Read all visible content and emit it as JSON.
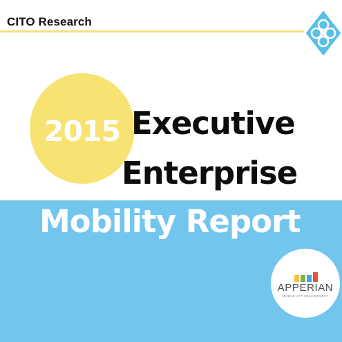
{
  "header": {
    "brand": "CITO Research",
    "logo_icon": "knot-logo-icon",
    "rule_color": "#f2e07a"
  },
  "hero": {
    "year": "2015",
    "title_line1": "Executive",
    "title_line2": "Enterprise",
    "title_line3": "Mobility Report",
    "circle_color": "#f8e271",
    "band_color": "#72c6ee"
  },
  "sponsor": {
    "name": "APPERIAN",
    "tagline": "MOBILE APP MANAGEMENT",
    "icon": "apperian-bars-icon"
  }
}
